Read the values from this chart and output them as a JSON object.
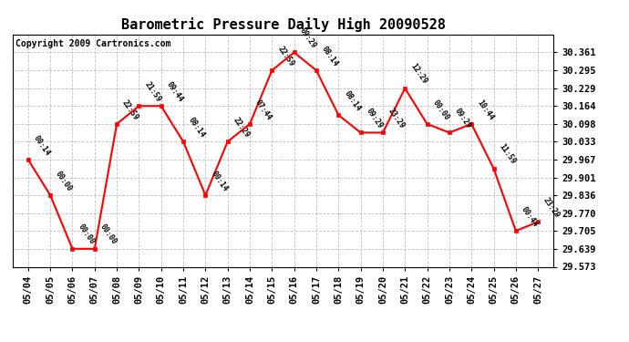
{
  "title": "Barometric Pressure Daily High 20090528",
  "copyright": "Copyright 2009 Cartronics.com",
  "x_labels": [
    "05/04",
    "05/05",
    "05/06",
    "05/07",
    "05/08",
    "05/09",
    "05/10",
    "05/11",
    "05/12",
    "05/13",
    "05/14",
    "05/15",
    "05/16",
    "05/17",
    "05/18",
    "05/19",
    "05/20",
    "05/21",
    "05/22",
    "05/23",
    "05/24",
    "05/25",
    "05/26",
    "05/27"
  ],
  "y_values": [
    29.967,
    29.836,
    29.639,
    29.639,
    30.098,
    30.164,
    30.164,
    30.033,
    29.836,
    30.033,
    30.098,
    30.295,
    30.361,
    30.295,
    30.131,
    30.066,
    30.066,
    30.229,
    30.098,
    30.066,
    30.098,
    29.934,
    29.705,
    29.738
  ],
  "time_labels": [
    "00:14",
    "00:00",
    "00:00",
    "00:00",
    "22:59",
    "21:59",
    "09:44",
    "08:14",
    "00:14",
    "22:29",
    "07:44",
    "22:59",
    "09:29",
    "08:14",
    "08:14",
    "09:29",
    "23:29",
    "12:29",
    "00:00",
    "09:29",
    "10:44",
    "11:59",
    "00:44",
    "23:29"
  ],
  "ylim_min": 29.573,
  "ylim_max": 30.428,
  "yticks": [
    29.573,
    29.639,
    29.705,
    29.77,
    29.836,
    29.901,
    29.967,
    30.033,
    30.098,
    30.164,
    30.229,
    30.295,
    30.361
  ],
  "line_color": "red",
  "marker_color": "red",
  "bg_color": "white",
  "grid_color": "#bbbbbb",
  "title_fontsize": 11,
  "copyright_fontsize": 7,
  "tick_fontsize": 7.5,
  "annotation_fontsize": 6
}
